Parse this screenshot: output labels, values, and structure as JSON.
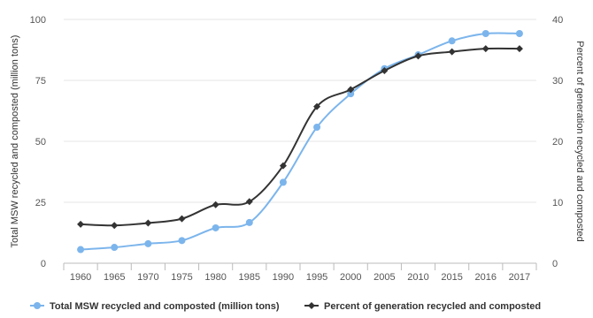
{
  "chart_data": {
    "type": "line",
    "categories": [
      "1960",
      "1965",
      "1970",
      "1975",
      "1980",
      "1985",
      "1990",
      "1995",
      "2000",
      "2005",
      "2010",
      "2015",
      "2016",
      "2017"
    ],
    "series": [
      {
        "name": "Total MSW recycled and composted (million tons)",
        "axis": "left",
        "color": "#7cb5ec",
        "marker": "circle",
        "values": [
          5.6,
          6.5,
          8.0,
          9.3,
          14.5,
          16.7,
          33.2,
          55.8,
          69.5,
          79.8,
          85.5,
          91.2,
          94.2,
          94.2
        ]
      },
      {
        "name": "Percent of generation recycled and composted",
        "axis": "right",
        "color": "#333333",
        "marker": "diamond",
        "values": [
          6.4,
          6.2,
          6.6,
          7.3,
          9.6,
          10.1,
          16.0,
          25.7,
          28.5,
          31.6,
          34.0,
          34.7,
          35.2,
          35.2
        ]
      }
    ],
    "y_left": {
      "label": "Total MSW recycled and composted (million tons)",
      "min": 0,
      "max": 100,
      "ticks": [
        "0",
        "25",
        "50",
        "75",
        "100"
      ]
    },
    "y_right": {
      "label": "Percent of generation recycled and composted",
      "min": 0,
      "max": 40,
      "ticks": [
        "0",
        "10",
        "20",
        "30",
        "40"
      ]
    },
    "grid": true,
    "legend": "bottom"
  }
}
